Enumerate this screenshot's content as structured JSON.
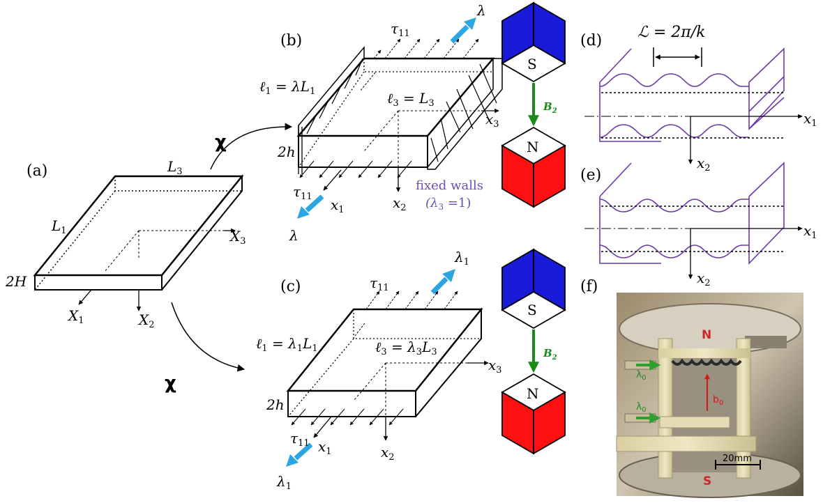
{
  "panels": {
    "a": "(a)",
    "b": "(b)",
    "c": "(c)",
    "d": "(d)",
    "e": "(e)",
    "f": "(f)"
  },
  "map_symbol": "χ",
  "panel_a": {
    "L3": "L",
    "L3_sub": "3",
    "L1": "L",
    "L1_sub": "1",
    "thickness": "2H",
    "X1": "X",
    "X1_sub": "1",
    "X2": "X",
    "X2_sub": "2",
    "X3": "X",
    "X3_sub": "3"
  },
  "panel_b": {
    "tau": "τ",
    "tau_sub": "11",
    "stretch": "λ",
    "l1_eq": "ℓ",
    "l1_sub": "1",
    "l1_rhs": " = λL",
    "l1_rhs_sub": "1",
    "l3_eq": "ℓ",
    "l3_sub": "3",
    "l3_rhs": " = L",
    "l3_rhs_sub": "3",
    "thickness": "2h",
    "x1": "x",
    "x1_sub": "1",
    "x2": "x",
    "x2_sub": "2",
    "x3": "x",
    "x3_sub": "3",
    "walls_line1": "fixed walls",
    "walls_line2_pre": "(λ",
    "walls_line2_sub": "3",
    "walls_line2_post": " =1)"
  },
  "panel_c": {
    "tau": "τ",
    "tau_sub": "11",
    "stretch": "λ",
    "stretch_sub": "1",
    "l1_eq": "ℓ",
    "l1_sub": "1",
    "l1_rhs": " = λ",
    "l1_rhs_sub": "1",
    "l1_rhs2": "L",
    "l1_rhs2_sub": "1",
    "l3_eq": "ℓ",
    "l3_sub": "3",
    "l3_rhs": " = λ",
    "l3_rhs_sub": "3",
    "l3_rhs2": "L",
    "l3_rhs2_sub": "3",
    "thickness": "2h",
    "x1": "x",
    "x1_sub": "1",
    "x2": "x",
    "x2_sub": "2",
    "x3": "x",
    "x3_sub": "3"
  },
  "magnets": {
    "south": "S",
    "north": "N",
    "field": "B",
    "field_sub": "2"
  },
  "panel_d": {
    "wavelength": "ℒ = 2π/k",
    "x1": "x",
    "x1_sub": "1",
    "x2": "x",
    "x2_sub": "2"
  },
  "panel_e": {
    "x1": "x",
    "x1_sub": "1",
    "x2": "x",
    "x2_sub": "2"
  },
  "photo": {
    "north": "N",
    "south": "S",
    "lambda_top": "λ",
    "lambda_top_sub": "0",
    "lambda_bottom": "λ",
    "lambda_bottom_sub": "0",
    "b": "b",
    "b_sub": "0",
    "scale": "20mm"
  },
  "colors": {
    "magnet_blue": "#1a1ad9",
    "magnet_red": "#ff1010",
    "field_green": "#1a8a1a",
    "stretch_arrow": "#2aa7e0",
    "wave_purple": "#6a3aa8",
    "walls_text": "#6a4fb0"
  }
}
